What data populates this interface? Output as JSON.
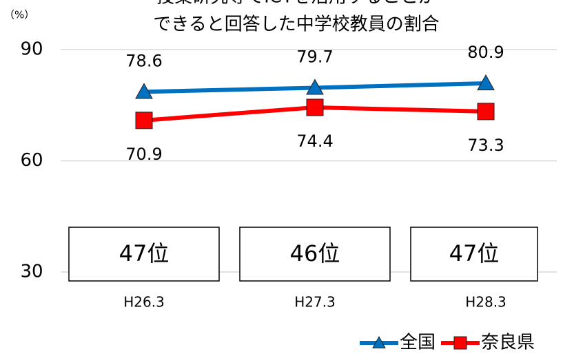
{
  "chart_data": {
    "type": "line",
    "title": [
      "授業研究等でICTを活用することが",
      "できると回答した中学校教員の割合"
    ],
    "y_unit": "（%）",
    "categories": [
      "H26.3",
      "H27.3",
      "H28.3"
    ],
    "series": [
      {
        "name": "全国",
        "color": "#0070c0",
        "marker": "triangle",
        "values": [
          78.6,
          79.7,
          80.9
        ]
      },
      {
        "name": "奈良県",
        "color": "#ff0000",
        "marker": "square",
        "values": [
          70.9,
          74.4,
          73.3
        ]
      }
    ],
    "rank_labels": [
      "47位",
      "46位",
      "47位"
    ],
    "ylim": [
      30,
      90
    ],
    "yticks": [
      30,
      60,
      90
    ],
    "grid": true,
    "legend": "bottom-right"
  }
}
